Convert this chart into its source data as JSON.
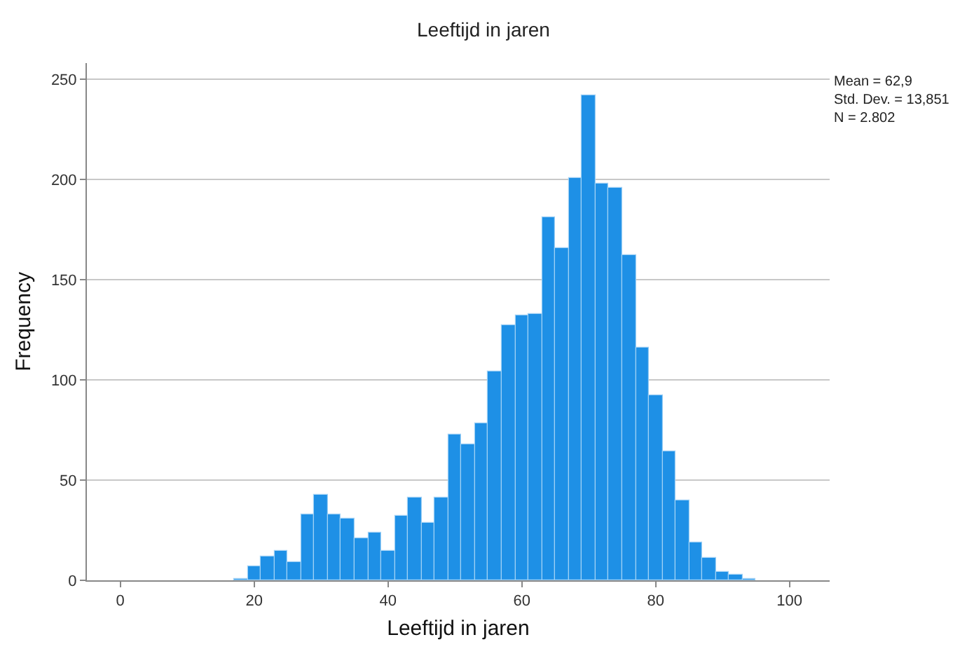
{
  "chart_data": {
    "type": "histogram",
    "title": "Leeftijd in jaren",
    "xlabel": "Leeftijd in jaren",
    "ylabel": "Frequency",
    "annotations": [
      "Mean = 62,9",
      "Std. Dev. = 13,851",
      "N = 2.802"
    ],
    "bins": [
      17,
      19,
      21,
      23,
      25,
      27,
      29,
      31,
      33,
      35,
      37,
      39,
      41,
      43,
      45,
      47,
      49,
      51,
      53,
      55,
      57,
      59,
      61,
      63,
      65,
      67,
      69,
      71,
      73,
      75,
      77,
      79,
      81,
      83,
      85,
      87,
      89,
      91,
      93,
      95
    ],
    "values": [
      1,
      7,
      12,
      15,
      9,
      33,
      43,
      33,
      31,
      21,
      24,
      15,
      32,
      41,
      29,
      41,
      73,
      68,
      78,
      104,
      127,
      132,
      133,
      181,
      166,
      201,
      242,
      198,
      196,
      162,
      116,
      92,
      64,
      40,
      19,
      11,
      4,
      3,
      1
    ],
    "color": "#1e90e6",
    "xlim": [
      -5,
      106
    ],
    "xticks": [
      0,
      20,
      40,
      60,
      80,
      100
    ],
    "ylim": [
      0,
      258
    ],
    "yticks": [
      0,
      50,
      100,
      150,
      200,
      250
    ],
    "grid": "y",
    "legend": false
  }
}
